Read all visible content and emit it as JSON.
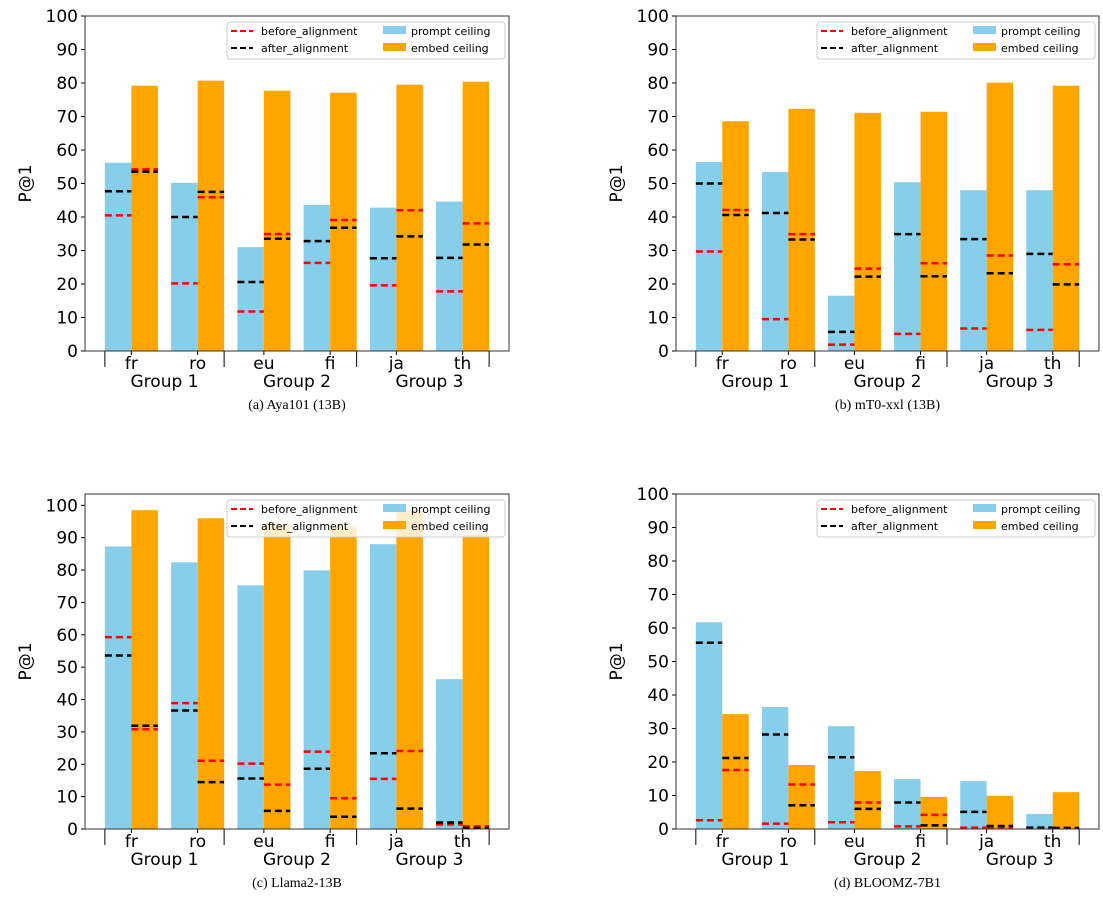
{
  "legend": {
    "before": "before_alignment",
    "after": "after_alignment",
    "prompt": "prompt ceiling",
    "embed": "embed ceiling"
  },
  "colors": {
    "prompt": "#87ceeb",
    "embed": "#ffa500",
    "before": "#ff0000",
    "after": "#000000"
  },
  "chart_data": [
    {
      "type": "bar",
      "caption": "(a) Aya101 (13B)",
      "ylabel": "P@1",
      "ylim": [
        0,
        100
      ],
      "yticks": [
        0,
        10,
        20,
        30,
        40,
        50,
        60,
        70,
        80,
        90,
        100
      ],
      "categories": [
        "fr",
        "ro",
        "eu",
        "fi",
        "ja",
        "th"
      ],
      "groups": [
        "Group 1",
        "Group 2",
        "Group 3"
      ],
      "legend_position": "upper right",
      "prompt_ceiling": [
        56.2,
        50.2,
        31.0,
        43.6,
        42.8,
        44.6
      ],
      "embed_ceiling": [
        79.2,
        80.7,
        77.7,
        77.1,
        79.5,
        80.4
      ],
      "prompt_before_alignment": [
        40.5,
        20.2,
        11.8,
        26.3,
        19.6,
        17.8
      ],
      "prompt_after_alignment": [
        47.7,
        40.0,
        20.6,
        32.8,
        27.7,
        27.8
      ],
      "embed_before_alignment": [
        54.2,
        45.9,
        34.9,
        39.1,
        42.0,
        38.1
      ],
      "embed_after_alignment": [
        53.5,
        47.5,
        33.5,
        36.8,
        34.2,
        31.8
      ]
    },
    {
      "type": "bar",
      "caption": "(b) mT0-xxl (13B)",
      "ylabel": "P@1",
      "ylim": [
        0,
        100
      ],
      "yticks": [
        0,
        10,
        20,
        30,
        40,
        50,
        60,
        70,
        80,
        90,
        100
      ],
      "categories": [
        "fr",
        "ro",
        "eu",
        "fi",
        "ja",
        "th"
      ],
      "groups": [
        "Group 1",
        "Group 2",
        "Group 3"
      ],
      "legend_position": "upper right",
      "prompt_ceiling": [
        56.4,
        53.4,
        16.5,
        50.4,
        48.0,
        48.0
      ],
      "embed_ceiling": [
        68.6,
        72.3,
        71.1,
        71.4,
        80.1,
        79.2
      ],
      "prompt_before_alignment": [
        29.7,
        9.5,
        1.9,
        5.1,
        6.7,
        6.3
      ],
      "prompt_after_alignment": [
        50.0,
        41.2,
        5.7,
        34.9,
        33.4,
        29.0
      ],
      "embed_before_alignment": [
        42.1,
        34.9,
        24.6,
        26.2,
        28.5,
        25.9
      ],
      "embed_after_alignment": [
        40.6,
        33.3,
        22.2,
        22.3,
        23.2,
        19.9
      ]
    },
    {
      "type": "bar",
      "caption": "(c) Llama2-13B",
      "ylabel": "P@1",
      "ylim": [
        0,
        103.5
      ],
      "yticks": [
        0,
        10,
        20,
        30,
        40,
        50,
        60,
        70,
        80,
        90,
        100
      ],
      "categories": [
        "fr",
        "ro",
        "eu",
        "fi",
        "ja",
        "th"
      ],
      "groups": [
        "Group 1",
        "Group 2",
        "Group 3"
      ],
      "legend_position": "upper right",
      "prompt_ceiling": [
        87.3,
        82.4,
        75.3,
        79.9,
        88.0,
        46.3
      ],
      "embed_ceiling": [
        98.5,
        96.0,
        94.0,
        93.5,
        98.3,
        91.0
      ],
      "prompt_before_alignment": [
        59.3,
        38.9,
        20.2,
        23.9,
        15.5,
        1.4
      ],
      "prompt_after_alignment": [
        53.6,
        36.6,
        15.6,
        18.6,
        23.4,
        2.0
      ],
      "embed_before_alignment": [
        30.8,
        21.1,
        13.7,
        9.5,
        24.1,
        0.8
      ],
      "embed_after_alignment": [
        31.9,
        14.5,
        5.6,
        3.8,
        6.3,
        0.3
      ]
    },
    {
      "type": "bar",
      "caption": "(d) BLOOMZ-7B1",
      "ylabel": "P@1",
      "ylim": [
        0,
        100
      ],
      "yticks": [
        0,
        10,
        20,
        30,
        40,
        50,
        60,
        70,
        80,
        90,
        100
      ],
      "categories": [
        "fr",
        "ro",
        "eu",
        "fi",
        "ja",
        "th"
      ],
      "groups": [
        "Group 1",
        "Group 2",
        "Group 3"
      ],
      "legend_position": "upper right",
      "prompt_ceiling": [
        61.7,
        36.4,
        30.7,
        14.9,
        14.3,
        4.5
      ],
      "embed_ceiling": [
        34.3,
        19.1,
        17.3,
        9.6,
        9.9,
        11.0
      ],
      "prompt_before_alignment": [
        2.6,
        1.6,
        2.0,
        0.8,
        0.4,
        0.3
      ],
      "prompt_after_alignment": [
        55.6,
        28.2,
        21.4,
        7.9,
        5.1,
        0.4
      ],
      "embed_before_alignment": [
        17.6,
        13.3,
        7.9,
        4.2,
        0.5,
        0.3
      ],
      "embed_after_alignment": [
        21.2,
        7.1,
        6.0,
        1.1,
        0.9,
        0.3
      ]
    }
  ]
}
